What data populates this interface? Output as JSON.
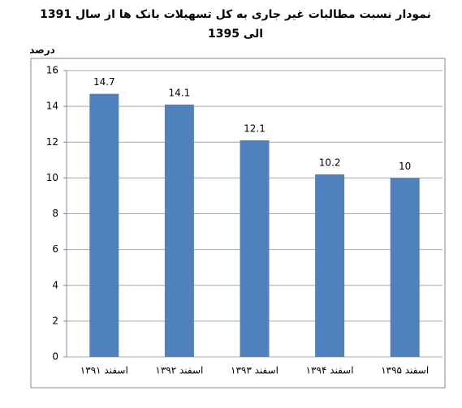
{
  "chart_data": {
    "type": "bar",
    "title": "نمودار نسبت مطالبات غیر جاری به کل تسهیلات بانک ها از سال 1391 الی 1395",
    "y_label": "درصد",
    "categories": [
      "اسفند ۱۳۹۱",
      "اسفند ۱۳۹۲",
      "اسفند ۱۳۹۳",
      "اسفند ۱۳۹۴",
      "اسفند ۱۳۹۵"
    ],
    "values": [
      14.7,
      14.1,
      12.1,
      10.2,
      10
    ],
    "color": "#4f81bd",
    "ylim": [
      0,
      16
    ],
    "yticks": [
      0,
      2,
      4,
      6,
      8,
      10,
      12,
      14,
      16
    ],
    "grid": true
  }
}
